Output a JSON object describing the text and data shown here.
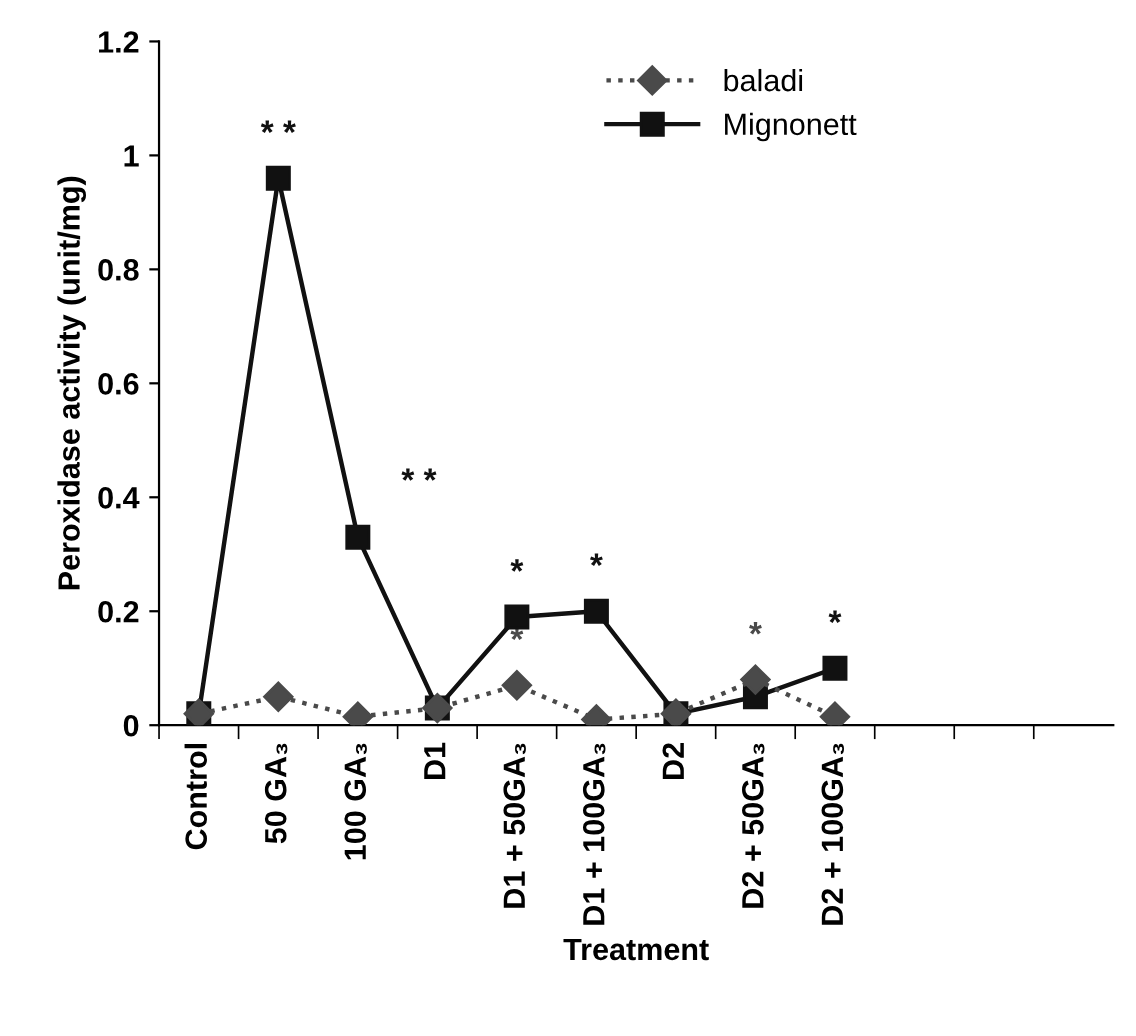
{
  "chart_data": {
    "type": "line",
    "xlabel": "Treatment",
    "ylabel": "Peroxidase activity (unit/mg)",
    "categories": [
      "Control",
      "50 GA₃",
      "100 GA₃",
      "D1",
      "D1 + 50GA₃",
      "D1 + 100GA₃",
      "D2",
      "D2 + 50GA₃",
      "D2 + 100GA₃",
      null,
      null,
      null
    ],
    "series": [
      {
        "name": "baladi",
        "color": "#4a4a4a",
        "marker": "diamond",
        "line_style": "dotted",
        "values": [
          0.02,
          0.05,
          0.015,
          0.03,
          0.07,
          0.01,
          0.02,
          0.08,
          0.015,
          null,
          null,
          null
        ],
        "value_labels": [
          null,
          null,
          null,
          null,
          "*",
          null,
          null,
          "*",
          null,
          null,
          null,
          null
        ]
      },
      {
        "name": "Mignonett",
        "color": "#111111",
        "marker": "square",
        "line_style": "solid",
        "values": [
          0.02,
          0.96,
          0.33,
          0.03,
          0.19,
          0.2,
          0.02,
          0.05,
          0.1,
          null,
          null,
          null
        ],
        "value_labels": [
          null,
          "* *",
          "* *",
          null,
          "*",
          "*",
          null,
          null,
          "*",
          null,
          null,
          null
        ]
      }
    ],
    "ylim": [
      0,
      1.2
    ],
    "yticks": [
      0,
      0.2,
      0.4,
      0.6,
      0.8,
      1,
      1.2
    ],
    "grid": false,
    "legend": "top"
  }
}
